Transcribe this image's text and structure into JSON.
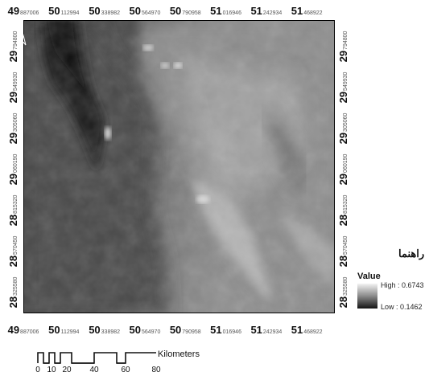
{
  "map": {
    "x_ticks": [
      {
        "deg": "49",
        "min": "887006"
      },
      {
        "deg": "50",
        "min": "112994"
      },
      {
        "deg": "50",
        "min": "338982"
      },
      {
        "deg": "50",
        "min": "564970"
      },
      {
        "deg": "50",
        "min": "790958"
      },
      {
        "deg": "51",
        "min": "016946"
      },
      {
        "deg": "51",
        "min": "242934"
      },
      {
        "deg": "51",
        "min": "468922"
      }
    ],
    "y_ticks": [
      {
        "deg": "29",
        "min": "794800"
      },
      {
        "deg": "29",
        "min": "549930"
      },
      {
        "deg": "29",
        "min": "305060"
      },
      {
        "deg": "29",
        "min": "060190"
      },
      {
        "deg": "28",
        "min": "815320"
      },
      {
        "deg": "28",
        "min": "570450"
      },
      {
        "deg": "28",
        "min": "325580"
      }
    ],
    "north_label": "N"
  },
  "legend": {
    "title": "راهنما",
    "value_label": "Value",
    "high_label": "High : 0.6743",
    "low_label": "Low : 0.1462",
    "high_value": 0.6743,
    "low_value": 0.1462
  },
  "scale_bar": {
    "unit": "Kilometers",
    "labels": [
      "0",
      "10",
      "20",
      "40",
      "60",
      "80"
    ]
  },
  "colors": {
    "ramp_high": "#f3f3f3",
    "ramp_low": "#141414"
  }
}
